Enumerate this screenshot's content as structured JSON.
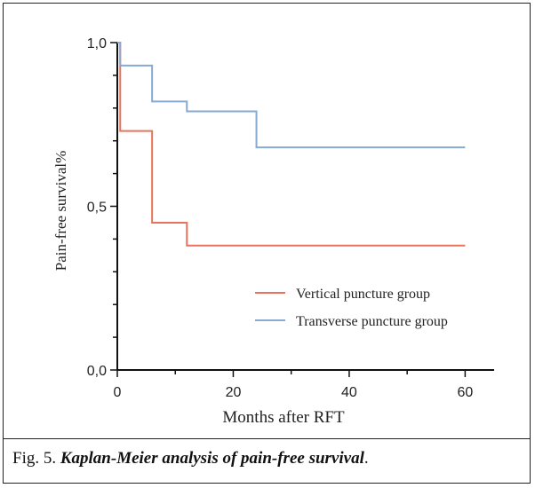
{
  "caption": {
    "prefix": "Fig. 5. ",
    "italic": "Kaplan-Meier analysis of pain-free survival",
    "suffix": "."
  },
  "chart_data": {
    "type": "line",
    "step": true,
    "xlabel": "Months after RFT",
    "ylabel": "Pain-free survival%",
    "xlim": [
      0,
      65
    ],
    "ylim": [
      0,
      1
    ],
    "x_ticks": [
      0,
      20,
      40,
      60
    ],
    "x_tick_labels": [
      "0",
      "20",
      "40",
      "60"
    ],
    "y_ticks": [
      0,
      0.5,
      1
    ],
    "y_tick_labels": [
      "0,0",
      "0,5",
      "1,0"
    ],
    "grid": false,
    "legend_position": "lower-right",
    "series": [
      {
        "name": "Vertical puncture group",
        "color": "#e8735a",
        "x": [
          0,
          0.5,
          6,
          12,
          60
        ],
        "y": [
          1.0,
          0.73,
          0.45,
          0.38,
          0.38
        ]
      },
      {
        "name": "Transverse puncture group",
        "color": "#86a9d6",
        "x": [
          0,
          0.5,
          6,
          12,
          24,
          60
        ],
        "y": [
          1.0,
          0.93,
          0.82,
          0.79,
          0.68,
          0.68
        ]
      }
    ]
  }
}
